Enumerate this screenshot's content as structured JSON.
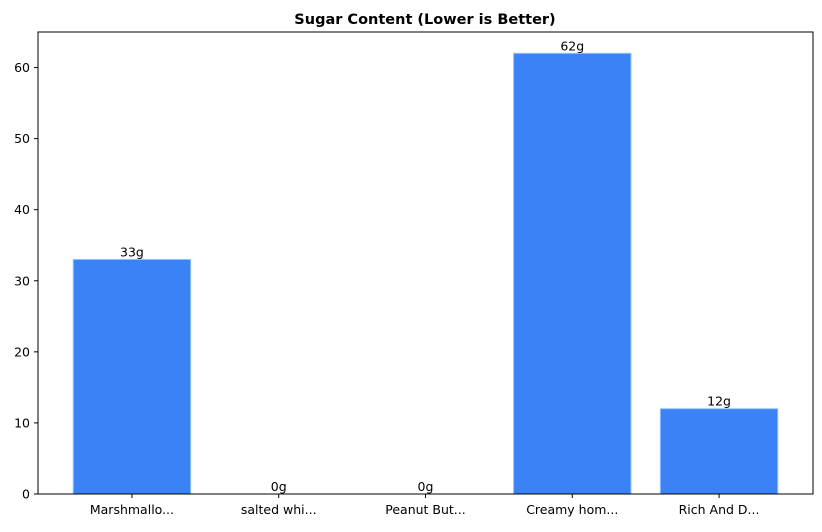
{
  "chart_data": {
    "type": "bar",
    "title": "Sugar Content (Lower is Better)",
    "xlabel": "",
    "ylabel": "",
    "categories": [
      "Marshmallo...",
      "salted whi...",
      "Peanut But...",
      "Creamy hom...",
      "Rich And D..."
    ],
    "values": [
      33,
      0,
      0,
      62,
      12
    ],
    "data_labels": [
      "33g",
      "0g",
      "0g",
      "62g",
      "12g"
    ],
    "ylim": [
      0,
      65
    ],
    "yticks": [
      0,
      10,
      20,
      30,
      40,
      50,
      60
    ],
    "grid": false,
    "bar_color": "#3b82f6",
    "bar_edge_color": "#93c5fd"
  }
}
